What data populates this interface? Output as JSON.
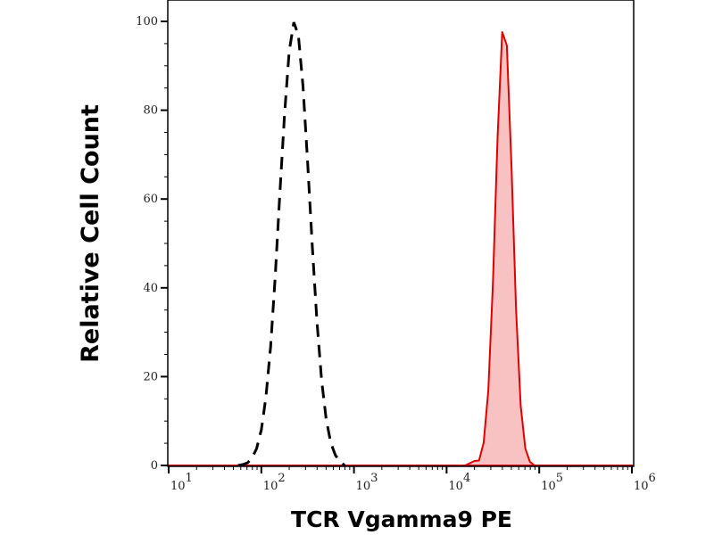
{
  "chart_data": {
    "type": "area",
    "title": "",
    "xlabel": "TCR Vgamma9 PE",
    "ylabel": "Relative Cell Count",
    "xscale": "log",
    "xlim": [
      10,
      1000000
    ],
    "ylim": [
      0,
      100
    ],
    "grid": false,
    "legend": "none",
    "x_ticks": [
      {
        "base": "10",
        "exp": "1",
        "value": 10
      },
      {
        "base": "10",
        "exp": "2",
        "value": 100
      },
      {
        "base": "10",
        "exp": "3",
        "value": 1000
      },
      {
        "base": "10",
        "exp": "4",
        "value": 10000
      },
      {
        "base": "10",
        "exp": "5",
        "value": 100000
      },
      {
        "base": "10",
        "exp": "6",
        "value": 1000000
      }
    ],
    "y_ticks": [
      "0",
      "20",
      "40",
      "60",
      "80",
      "100"
    ],
    "series": [
      {
        "style": "dashed-line",
        "color": "#000000",
        "x": [
          56,
          63,
          71,
          79,
          89,
          100,
          112,
          126,
          141,
          158,
          178,
          200,
          224,
          251,
          282,
          316,
          355,
          398,
          447,
          501,
          562,
          631,
          708,
          794
        ],
        "y": [
          0,
          0.2,
          0.6,
          1.6,
          3.8,
          8.0,
          15.3,
          26.7,
          42.3,
          60.7,
          79.0,
          93.2,
          99.8,
          96.9,
          85.4,
          68.2,
          49.4,
          32.5,
          19.3,
          10.5,
          5.1,
          2.3,
          0.9,
          0
        ]
      },
      {
        "style": "filled",
        "color": "#e00000",
        "fill": "#f9c2c2",
        "x": [
          15849,
          17783,
          19953,
          22387,
          25119,
          28184,
          31623,
          35481,
          39811,
          44668,
          50119,
          56234,
          63096,
          70795,
          79433,
          89125
        ],
        "y": [
          0,
          0.5,
          1,
          1.1,
          5.1,
          16.8,
          41.1,
          73.9,
          97.6,
          94.6,
          67.4,
          35.2,
          13.5,
          3.8,
          0.8,
          0
        ]
      }
    ]
  }
}
